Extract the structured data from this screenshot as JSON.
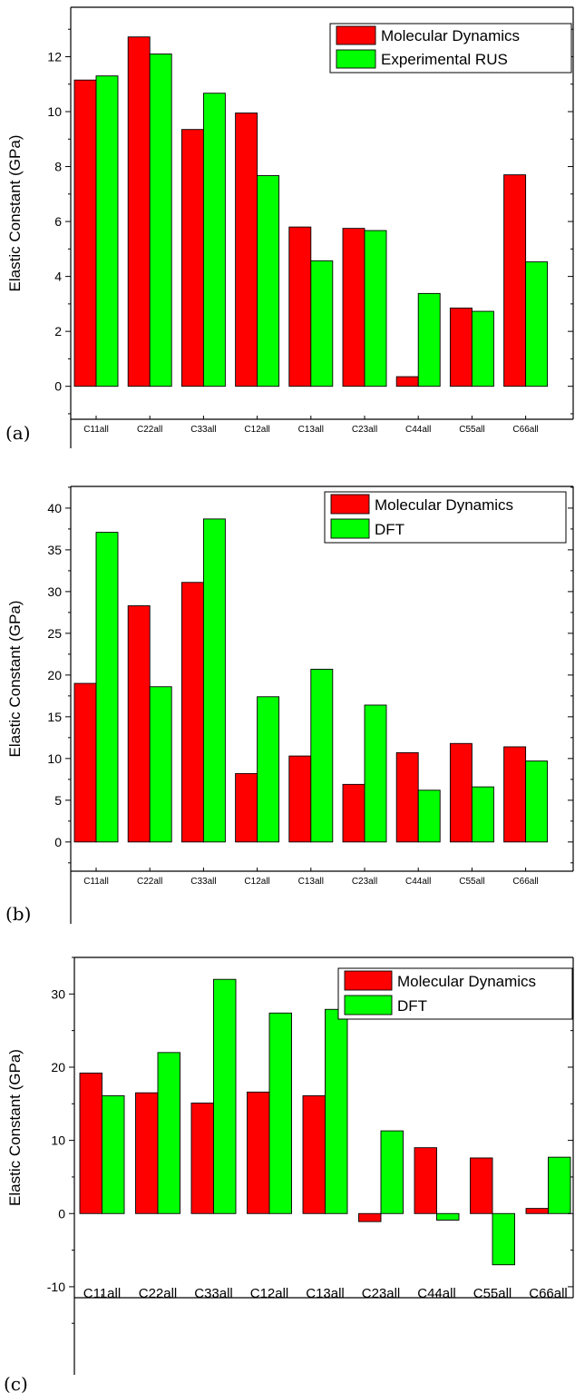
{
  "colors": {
    "md": "#ff0000",
    "ref": "#00ff00"
  },
  "chart_data": [
    {
      "type": "bar",
      "panel_label": "(a)",
      "ylabel": "Elastic Constant (GPa)",
      "categories": [
        "C11all",
        "C22all",
        "C33all",
        "C12all",
        "C13all",
        "C23all",
        "C44all",
        "C55all",
        "C66all"
      ],
      "series": [
        {
          "name": "Molecular Dynamics",
          "values": [
            11.15,
            12.72,
            9.35,
            9.95,
            5.8,
            5.75,
            0.35,
            2.85,
            7.7
          ]
        },
        {
          "name": "Experimental RUS",
          "values": [
            11.3,
            12.1,
            10.67,
            7.67,
            4.57,
            5.67,
            3.38,
            2.73,
            4.53
          ]
        }
      ],
      "yticks": [
        "0",
        "2",
        "4",
        "6",
        "8",
        "10",
        "12"
      ],
      "ylim": [
        -1.2,
        13.8
      ],
      "legend_position": "top-right",
      "grid": false
    },
    {
      "type": "bar",
      "panel_label": "(b)",
      "ylabel": "Elastic Constant (GPa)",
      "categories": [
        "C11all",
        "C22all",
        "C33all",
        "C12all",
        "C13all",
        "C23all",
        "C44all",
        "C55all",
        "C66all"
      ],
      "series": [
        {
          "name": "Molecular Dynamics",
          "values": [
            19.0,
            28.3,
            31.1,
            8.2,
            10.3,
            6.9,
            10.7,
            11.8,
            11.4
          ]
        },
        {
          "name": "DFT",
          "values": [
            37.1,
            18.6,
            38.7,
            17.4,
            20.7,
            16.4,
            6.2,
            6.6,
            9.7
          ]
        }
      ],
      "yticks": [
        "0",
        "5",
        "10",
        "15",
        "20",
        "25",
        "30",
        "35",
        "40"
      ],
      "ylim": [
        -3.5,
        42.6
      ],
      "legend_position": "top-right",
      "grid": false
    },
    {
      "type": "bar",
      "panel_label": "(c)",
      "ylabel": "Elastic Constant (GPa)",
      "categories": [
        "C11all",
        "C22all",
        "C33all",
        "C12all",
        "C13all",
        "C23all",
        "C44all",
        "C55all",
        "C66all"
      ],
      "series": [
        {
          "name": "Molecular Dynamics",
          "values": [
            19.2,
            16.5,
            15.1,
            16.6,
            16.1,
            -1.1,
            9.0,
            7.6,
            0.7
          ]
        },
        {
          "name": "DFT",
          "values": [
            16.1,
            22.0,
            32.0,
            27.4,
            27.9,
            11.3,
            -0.9,
            -7.0,
            7.7
          ]
        }
      ],
      "yticks": [
        "-10",
        "0",
        "10",
        "20",
        "30"
      ],
      "ylim": [
        -11.5,
        35.0
      ],
      "legend_position": "top-right",
      "grid": false
    }
  ]
}
